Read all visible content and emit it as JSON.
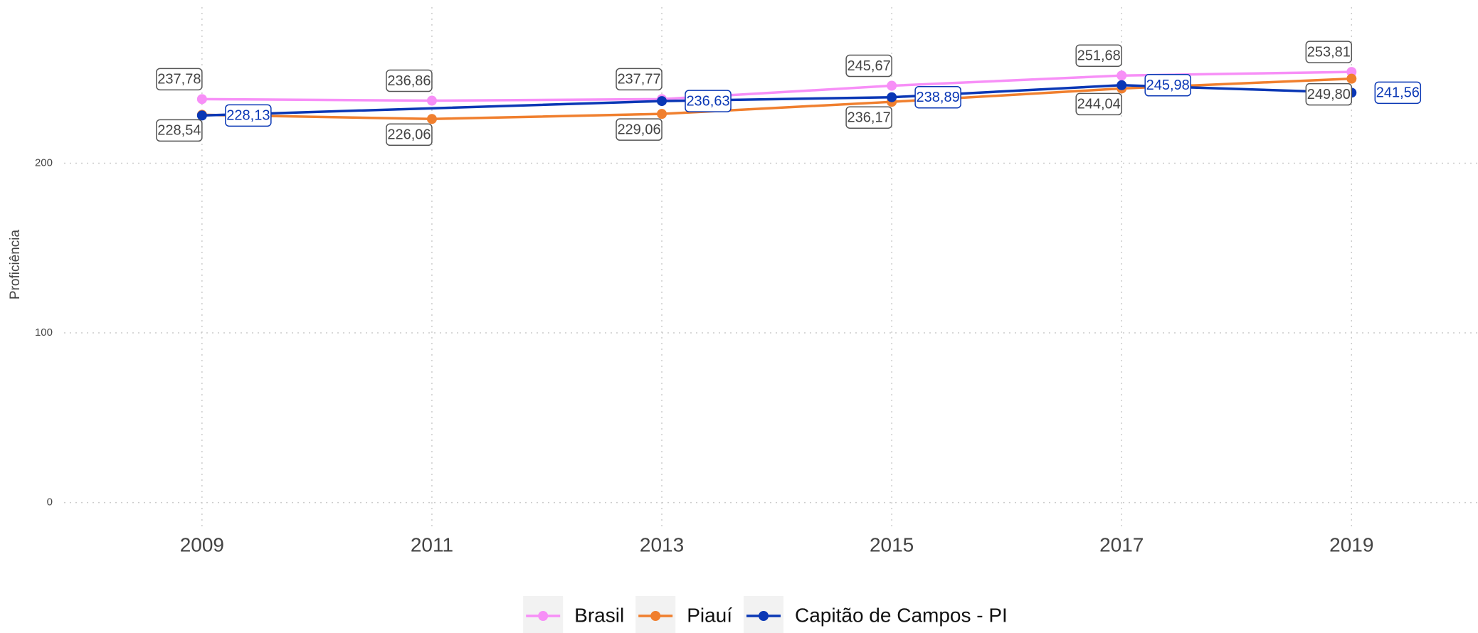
{
  "chart_data": {
    "type": "line",
    "y_label": "Proficiência",
    "xlim": [
      2007.8,
      2020.1
    ],
    "xticks": [
      2009,
      2011,
      2013,
      2015,
      2017,
      2019
    ],
    "ylim": [
      -14,
      292
    ],
    "yticks": [
      0,
      100,
      200
    ],
    "grid": true,
    "legend": "bottom",
    "series": [
      {
        "name": "Brasil",
        "color": "#f78ff7",
        "x": [
          2009,
          2011,
          2013,
          2015,
          2017,
          2019
        ],
        "values": [
          237.78,
          236.86,
          237.77,
          245.67,
          251.68,
          253.81
        ],
        "value_labels": [
          "237,78",
          "236,86",
          "237,77",
          "245,67",
          "251,68",
          "253,81"
        ]
      },
      {
        "name": "Piauí",
        "color": "#f07f2e",
        "x": [
          2009,
          2011,
          2013,
          2015,
          2017,
          2019
        ],
        "values": [
          228.54,
          226.06,
          229.06,
          236.17,
          244.04,
          249.8
        ],
        "value_labels": [
          "228,54",
          "226,06",
          "229,06",
          "236,17",
          "244,04",
          "249,80"
        ]
      },
      {
        "name": "Capitão de Campos - PI",
        "color": "#0a37b5",
        "x": [
          2009,
          2013,
          2015,
          2017,
          2019
        ],
        "values": [
          228.13,
          236.63,
          238.89,
          245.98,
          241.56
        ],
        "value_labels": [
          "228,13",
          "236,63",
          "238,89",
          "245,98",
          "241,56"
        ]
      }
    ]
  }
}
